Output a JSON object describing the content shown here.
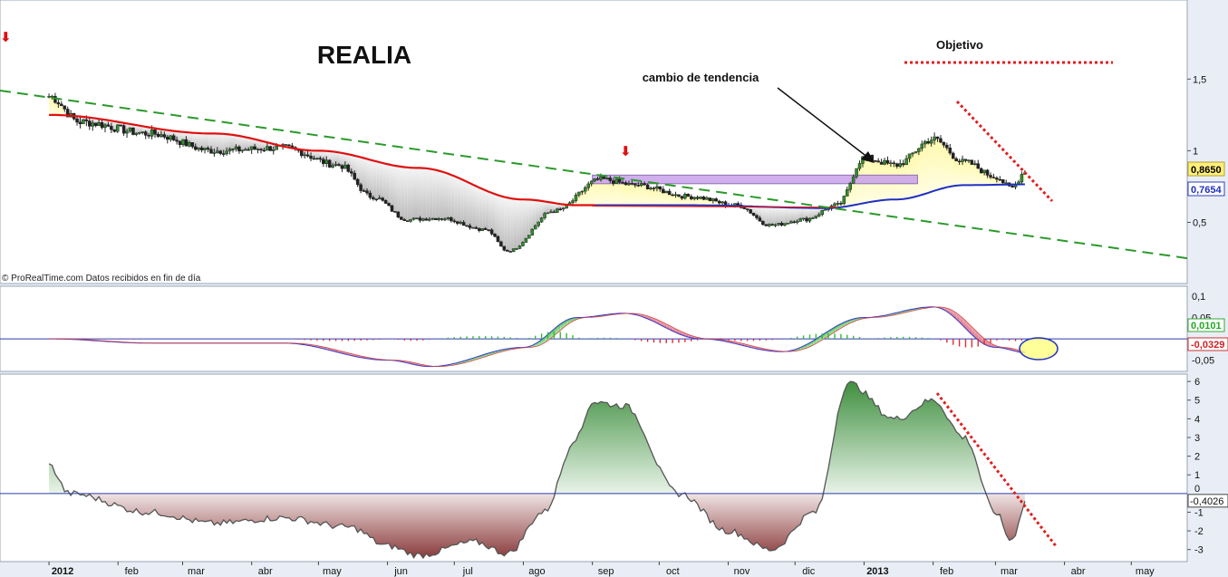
{
  "chart_data": [
    {
      "type": "candlestick",
      "title": "REALIA",
      "x_tick_labels": [
        "2012",
        "feb",
        "mar",
        "abr",
        "may",
        "jun",
        "jul",
        "ago",
        "sep",
        "oct",
        "nov",
        "dic",
        "2013",
        "feb",
        "mar",
        "abr",
        "may"
      ],
      "y_tick_labels": [
        "1,5",
        "1",
        "0,5"
      ],
      "ylim": [
        0.2,
        1.9
      ],
      "close_price": [
        {
          "date": "2012-01-01",
          "value": 1.38
        },
        {
          "date": "2012-01-15",
          "value": 1.2
        },
        {
          "date": "2012-02-15",
          "value": 1.12
        },
        {
          "date": "2012-03-15",
          "value": 1.0
        },
        {
          "date": "2012-04-15",
          "value": 1.02
        },
        {
          "date": "2012-05-10",
          "value": 0.9
        },
        {
          "date": "2012-05-25",
          "value": 0.68
        },
        {
          "date": "2012-06-10",
          "value": 0.52
        },
        {
          "date": "2012-06-25",
          "value": 0.53
        },
        {
          "date": "2012-07-15",
          "value": 0.45
        },
        {
          "date": "2012-07-25",
          "value": 0.3
        },
        {
          "date": "2012-08-15",
          "value": 0.58
        },
        {
          "date": "2012-09-05",
          "value": 0.8
        },
        {
          "date": "2012-09-20",
          "value": 0.76
        },
        {
          "date": "2012-10-15",
          "value": 0.68
        },
        {
          "date": "2012-11-05",
          "value": 0.62
        },
        {
          "date": "2012-11-20",
          "value": 0.48
        },
        {
          "date": "2012-12-05",
          "value": 0.52
        },
        {
          "date": "2012-12-20",
          "value": 0.62
        },
        {
          "date": "2013-01-01",
          "value": 0.95
        },
        {
          "date": "2013-01-15",
          "value": 0.9
        },
        {
          "date": "2013-02-01",
          "value": 1.08
        },
        {
          "date": "2013-02-15",
          "value": 0.92
        },
        {
          "date": "2013-03-01",
          "value": 0.82
        },
        {
          "date": "2013-03-08",
          "value": 0.74
        },
        {
          "date": "2013-03-15",
          "value": 0.865
        }
      ],
      "moving_average": [
        {
          "date": "2012-01-01",
          "value": 1.25
        },
        {
          "date": "2012-03-15",
          "value": 1.12
        },
        {
          "date": "2012-05-01",
          "value": 1.0
        },
        {
          "date": "2012-06-15",
          "value": 0.88
        },
        {
          "date": "2012-08-01",
          "value": 0.66
        },
        {
          "date": "2012-08-25",
          "value": 0.62
        },
        {
          "date": "2012-10-15",
          "value": 0.62
        },
        {
          "date": "2012-12-15",
          "value": 0.6
        },
        {
          "date": "2013-01-15",
          "value": 0.66
        },
        {
          "date": "2013-02-15",
          "value": 0.76
        },
        {
          "date": "2013-03-15",
          "value": 0.7654
        }
      ],
      "last_price_label": "0,8650",
      "last_ma_label": "0,7654",
      "annotations": [
        {
          "text": "cambio de tendencia"
        },
        {
          "text": "Objetivo"
        },
        {
          "text": "© ProRealTime.com  Datos recibidos en fin de día"
        }
      ],
      "colors": {
        "price_up": "#2f8f2f",
        "moving_average": "#e01010",
        "moving_average_recent": "#2030c0",
        "trend_line": "#2a9a2a",
        "objective_line": "#e02020",
        "resistance_box": "#c9a0ec"
      }
    },
    {
      "type": "line",
      "title": "",
      "y_tick_labels": [
        "0,1",
        "0,05",
        "-0,05"
      ],
      "ylim": [
        -0.07,
        0.115
      ],
      "macd": [
        {
          "date": "2012-01-01",
          "value": 0.0
        },
        {
          "date": "2012-02-15",
          "value": -0.01
        },
        {
          "date": "2012-04-15",
          "value": -0.01
        },
        {
          "date": "2012-06-01",
          "value": -0.05
        },
        {
          "date": "2012-06-20",
          "value": -0.065
        },
        {
          "date": "2012-08-01",
          "value": -0.02
        },
        {
          "date": "2012-08-25",
          "value": 0.05
        },
        {
          "date": "2012-09-15",
          "value": 0.06
        },
        {
          "date": "2012-10-20",
          "value": 0.0
        },
        {
          "date": "2012-11-25",
          "value": -0.03
        },
        {
          "date": "2013-01-01",
          "value": 0.05
        },
        {
          "date": "2013-02-01",
          "value": 0.075
        },
        {
          "date": "2013-03-01",
          "value": -0.02
        },
        {
          "date": "2013-03-15",
          "value": -0.0329
        }
      ],
      "histogram": [
        {
          "date": "2012-09-01",
          "value": 0.01
        },
        {
          "date": "2013-01-05",
          "value": 0.012
        },
        {
          "date": "2013-02-20",
          "value": -0.01
        },
        {
          "date": "2013-03-15",
          "value": 0.0101
        }
      ],
      "last_value_labels": [
        "0,0101",
        "-0,0329"
      ]
    },
    {
      "type": "area",
      "title": "",
      "y_tick_labels": [
        "6",
        "5",
        "4",
        "3",
        "2",
        "1",
        "0",
        "-1",
        "-2",
        "-3"
      ],
      "ylim": [
        -3.5,
        6.2
      ],
      "values": [
        {
          "date": "2012-01-01",
          "value": 1.5
        },
        {
          "date": "2012-01-10",
          "value": 0.0
        },
        {
          "date": "2012-02-15",
          "value": -1.0
        },
        {
          "date": "2012-03-15",
          "value": -1.6
        },
        {
          "date": "2012-04-15",
          "value": -1.3
        },
        {
          "date": "2012-05-15",
          "value": -1.8
        },
        {
          "date": "2012-06-01",
          "value": -2.8
        },
        {
          "date": "2012-06-15",
          "value": -3.3
        },
        {
          "date": "2012-07-10",
          "value": -2.6
        },
        {
          "date": "2012-07-25",
          "value": -3.2
        },
        {
          "date": "2012-08-10",
          "value": -1.0
        },
        {
          "date": "2012-08-25",
          "value": 3.0
        },
        {
          "date": "2012-09-01",
          "value": 4.9
        },
        {
          "date": "2012-09-15",
          "value": 4.7
        },
        {
          "date": "2012-10-10",
          "value": 0.0
        },
        {
          "date": "2012-11-01",
          "value": -2.0
        },
        {
          "date": "2012-11-20",
          "value": -3.0
        },
        {
          "date": "2012-12-10",
          "value": -1.0
        },
        {
          "date": "2012-12-25",
          "value": 5.9
        },
        {
          "date": "2013-01-15",
          "value": 4.0
        },
        {
          "date": "2013-02-01",
          "value": 5.0
        },
        {
          "date": "2013-02-15",
          "value": 3.0
        },
        {
          "date": "2013-03-01",
          "value": -1.0
        },
        {
          "date": "2013-03-08",
          "value": -2.5
        },
        {
          "date": "2013-03-15",
          "value": -0.4026
        }
      ],
      "last_value_label": "-0,4026",
      "colors": {
        "positive": "#5fa85f",
        "negative": "#9a4a4a",
        "line": "#555555",
        "zero_line": "#2b3bb0"
      }
    }
  ]
}
